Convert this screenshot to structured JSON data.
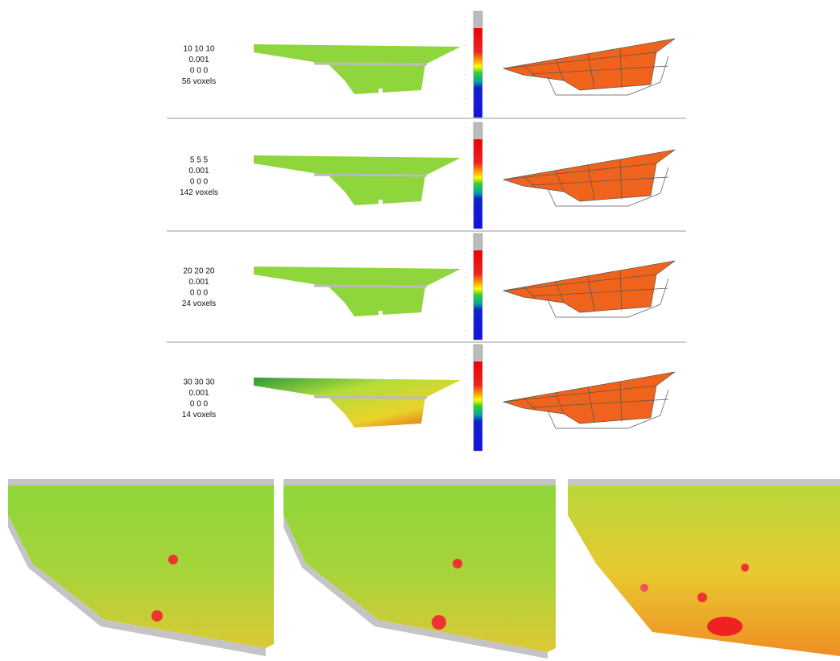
{
  "rows": [
    {
      "lines": [
        "10 10 10",
        "0.001",
        "0 0 0",
        "56 voxels"
      ]
    },
    {
      "lines": [
        "5 5 5",
        "0.001",
        "0 0 0",
        "142 voxels"
      ]
    },
    {
      "lines": [
        "20 20 20",
        "0.001",
        "0 0 0",
        "24 voxels"
      ]
    },
    {
      "lines": [
        "30 30 30",
        "0.001",
        "0 0 0",
        "14 voxels"
      ]
    }
  ]
}
